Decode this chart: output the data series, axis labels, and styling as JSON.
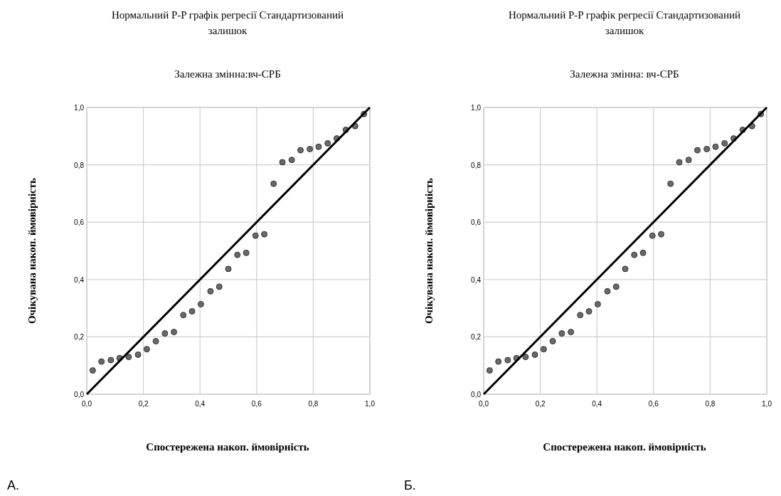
{
  "chart_data": [
    {
      "type": "scatter",
      "title": "Нормальний P-P графік регресії Стандартизований залишок",
      "subtitle": "Залежна змінна:вч-СРБ",
      "xlabel": "Спостережена накоп. ймовірність",
      "ylabel": "Очікувана накоп. ймовірність",
      "annotations": [
        "А."
      ],
      "xlim": [
        0,
        1
      ],
      "ylim": [
        0,
        1
      ],
      "xticks": [
        {
          "value": 0,
          "label": "0,0"
        },
        {
          "value": 0.2,
          "label": "0,2"
        },
        {
          "value": 0.4,
          "label": "0,4"
        },
        {
          "value": 0.6,
          "label": "0,6"
        },
        {
          "value": 0.8,
          "label": "0,8"
        },
        {
          "value": 1,
          "label": "1,0"
        }
      ],
      "yticks": [
        {
          "value": 0,
          "label": "0,0"
        },
        {
          "value": 0.2,
          "label": "0,2"
        },
        {
          "value": 0.4,
          "label": "0,4"
        },
        {
          "value": 0.6,
          "label": "0,6"
        },
        {
          "value": 0.8,
          "label": "0,8"
        },
        {
          "value": 1,
          "label": "1,0"
        }
      ],
      "grid": true,
      "series": [
        {
          "marker": "circle",
          "color": "#696969",
          "x": [
            0.021,
            0.052,
            0.085,
            0.116,
            0.148,
            0.181,
            0.212,
            0.244,
            0.276,
            0.308,
            0.341,
            0.372,
            0.403,
            0.437,
            0.468,
            0.5,
            0.532,
            0.563,
            0.596,
            0.627,
            0.66,
            0.691,
            0.724,
            0.755,
            0.788,
            0.819,
            0.851,
            0.883,
            0.915,
            0.948,
            0.979
          ],
          "values": [
            0.083,
            0.114,
            0.119,
            0.126,
            0.13,
            0.138,
            0.157,
            0.185,
            0.212,
            0.217,
            0.276,
            0.289,
            0.314,
            0.359,
            0.375,
            0.437,
            0.486,
            0.493,
            0.553,
            0.558,
            0.734,
            0.809,
            0.817,
            0.851,
            0.855,
            0.863,
            0.875,
            0.892,
            0.922,
            0.935,
            0.977
          ]
        },
        {
          "type": "line",
          "color": "#000000",
          "x": [
            0,
            1
          ],
          "values": [
            0,
            1
          ]
        }
      ]
    },
    {
      "type": "scatter",
      "title": "Нормальний P-P графік регресії Стандартизований залишок",
      "subtitle": "Залежна змінна: вч-СРБ",
      "xlabel": "Спостережена накоп. ймовірність",
      "ylabel": "Очікувана накоп. ймовірність",
      "annotations": [
        "Б."
      ],
      "xlim": [
        0,
        1
      ],
      "ylim": [
        0,
        1
      ],
      "xticks": [
        {
          "value": 0,
          "label": "0,0"
        },
        {
          "value": 0.2,
          "label": "0,2"
        },
        {
          "value": 0.4,
          "label": "0,4"
        },
        {
          "value": 0.6,
          "label": "0,6"
        },
        {
          "value": 0.8,
          "label": "0,8"
        },
        {
          "value": 1,
          "label": "1,0"
        }
      ],
      "yticks": [
        {
          "value": 0,
          "label": "0,0"
        },
        {
          "value": 0.2,
          "label": "0,2"
        },
        {
          "value": 0.4,
          "label": "0,4"
        },
        {
          "value": 0.6,
          "label": "0,6"
        },
        {
          "value": 0.8,
          "label": "0,8"
        },
        {
          "value": 1,
          "label": "1,0"
        }
      ],
      "grid": true,
      "series": [
        {
          "marker": "circle",
          "color": "#696969",
          "x": [
            0.021,
            0.052,
            0.085,
            0.116,
            0.148,
            0.181,
            0.212,
            0.244,
            0.276,
            0.308,
            0.341,
            0.372,
            0.403,
            0.437,
            0.468,
            0.5,
            0.532,
            0.563,
            0.596,
            0.627,
            0.66,
            0.691,
            0.724,
            0.755,
            0.788,
            0.819,
            0.851,
            0.883,
            0.915,
            0.948,
            0.979
          ],
          "values": [
            0.083,
            0.114,
            0.119,
            0.126,
            0.13,
            0.138,
            0.157,
            0.185,
            0.212,
            0.217,
            0.276,
            0.289,
            0.314,
            0.359,
            0.375,
            0.437,
            0.486,
            0.493,
            0.553,
            0.558,
            0.734,
            0.809,
            0.817,
            0.851,
            0.855,
            0.863,
            0.875,
            0.892,
            0.922,
            0.935,
            0.977
          ]
        },
        {
          "type": "line",
          "color": "#000000",
          "x": [
            0,
            1
          ],
          "values": [
            0,
            1
          ]
        }
      ]
    }
  ]
}
